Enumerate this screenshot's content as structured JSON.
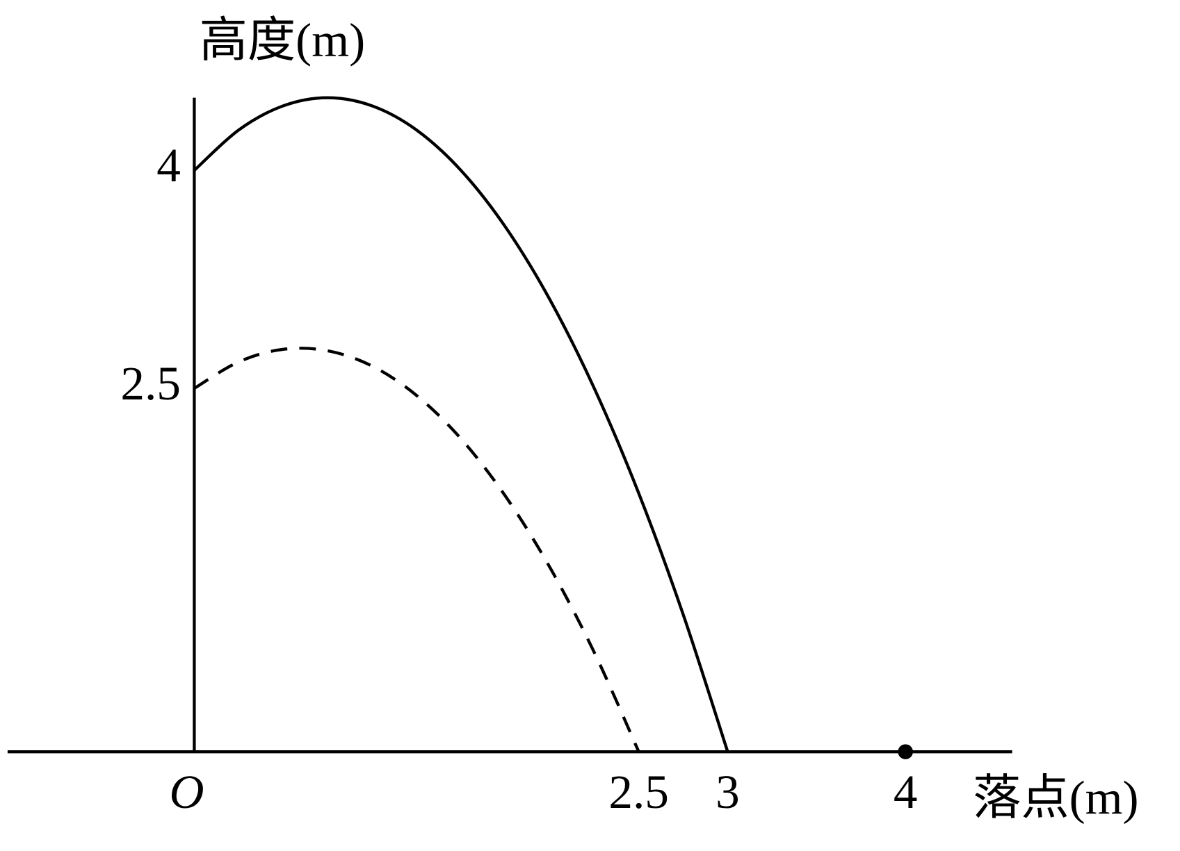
{
  "chart_data": {
    "type": "line",
    "x_label": "落点(m)",
    "y_label": "高度(m)",
    "x": [
      0,
      0.25,
      0.5,
      0.75,
      1,
      1.25,
      1.5,
      1.75,
      2,
      2.25,
      2.5,
      2.75,
      3
    ],
    "series": [
      {
        "color": "#000000",
        "style": "solid",
        "values": [
          4.0,
          4.278,
          4.444,
          4.5,
          4.444,
          4.278,
          4.0,
          3.611,
          3.111,
          2.5,
          1.778,
          0.944,
          0
        ]
      },
      {
        "color": "#000000",
        "style": "dashed",
        "values": [
          2.5,
          2.683,
          2.769,
          2.759,
          2.654,
          2.452,
          2.154,
          1.759,
          1.269,
          0.683,
          0,
          null,
          null
        ]
      }
    ],
    "markers": [
      {
        "x": 4,
        "y": 0,
        "color": "#000000"
      }
    ],
    "xlim": [
      -1.05,
      4.6
    ],
    "ylim": [
      0,
      4.5
    ],
    "xticks": [
      {
        "value": 0,
        "label": "O"
      },
      2.5,
      3,
      4
    ],
    "yticks": [
      2.5,
      4
    ],
    "grid": false
  }
}
